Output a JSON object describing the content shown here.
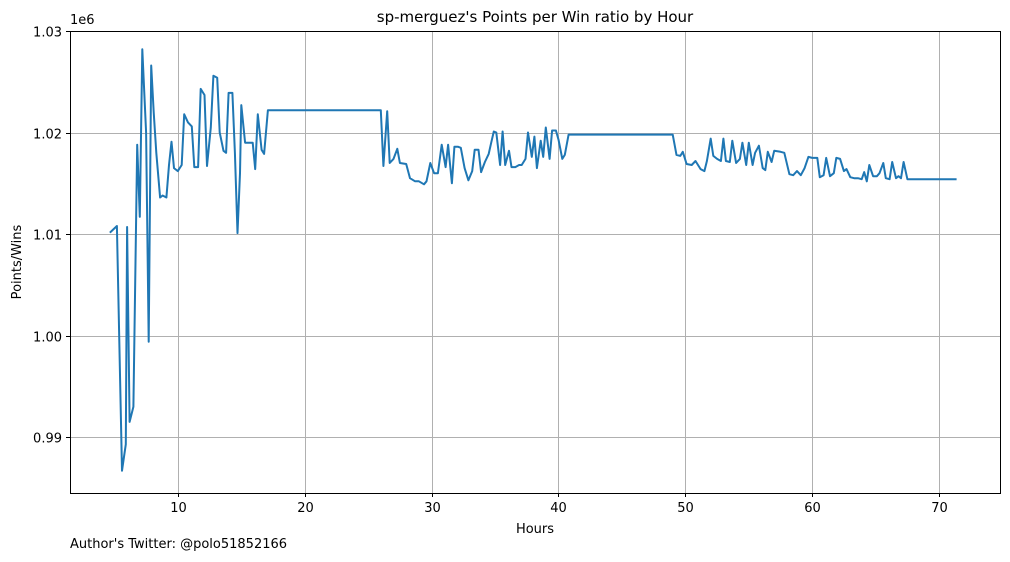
{
  "chart_data": {
    "type": "line",
    "title": "sp-merguez's Points per Win ratio by Hour",
    "xlabel": "Hours",
    "ylabel": "Points/Wins",
    "y_offset_label": "1e6",
    "xlim": [
      1.5,
      74.8
    ],
    "ylim": [
      0.9845,
      1.03
    ],
    "xticks": [
      10,
      20,
      30,
      40,
      50,
      60,
      70
    ],
    "yticks": [
      0.99,
      1.0,
      1.01,
      1.02,
      1.03
    ],
    "ytick_labels": [
      "0.99",
      "1.00",
      "1.01",
      "1.02",
      "1.03"
    ],
    "grid": true,
    "series": [
      {
        "color": "#1f77b4",
        "points": [
          [
            4.7,
            1.0102
          ],
          [
            5.2,
            1.0108
          ],
          [
            5.6,
            0.9867
          ],
          [
            5.9,
            0.9893
          ],
          [
            6.0,
            1.0107
          ],
          [
            6.2,
            0.9915
          ],
          [
            6.5,
            0.993
          ],
          [
            6.8,
            1.0188
          ],
          [
            7.0,
            1.0117
          ],
          [
            7.2,
            1.0282
          ],
          [
            7.5,
            1.02
          ],
          [
            7.7,
            0.9994
          ],
          [
            7.9,
            1.0266
          ],
          [
            8.1,
            1.022
          ],
          [
            8.3,
            1.018
          ],
          [
            8.6,
            1.0136
          ],
          [
            8.8,
            1.0138
          ],
          [
            9.1,
            1.0136
          ],
          [
            9.3,
            1.0168
          ],
          [
            9.5,
            1.0191
          ],
          [
            9.7,
            1.0165
          ],
          [
            10.0,
            1.0162
          ],
          [
            10.3,
            1.0168
          ],
          [
            10.5,
            1.0218
          ],
          [
            10.8,
            1.021
          ],
          [
            11.1,
            1.0206
          ],
          [
            11.3,
            1.0166
          ],
          [
            11.6,
            1.0166
          ],
          [
            11.8,
            1.0243
          ],
          [
            12.1,
            1.0237
          ],
          [
            12.3,
            1.0167
          ],
          [
            12.6,
            1.0205
          ],
          [
            12.8,
            1.0256
          ],
          [
            13.1,
            1.0254
          ],
          [
            13.3,
            1.02
          ],
          [
            13.6,
            1.0182
          ],
          [
            13.8,
            1.018
          ],
          [
            14.0,
            1.0239
          ],
          [
            14.3,
            1.0239
          ],
          [
            14.5,
            1.018
          ],
          [
            14.7,
            1.0101
          ],
          [
            14.9,
            1.016
          ],
          [
            15.0,
            1.0227
          ],
          [
            15.3,
            1.019
          ],
          [
            15.6,
            1.019
          ],
          [
            15.9,
            1.019
          ],
          [
            16.1,
            1.0164
          ],
          [
            16.3,
            1.0218
          ],
          [
            16.6,
            1.0183
          ],
          [
            16.8,
            1.0179
          ],
          [
            17.1,
            1.0222
          ],
          [
            18.0,
            1.0222
          ],
          [
            20.0,
            1.0222
          ],
          [
            22.0,
            1.0222
          ],
          [
            24.0,
            1.0222
          ],
          [
            26.0,
            1.0222
          ],
          [
            26.2,
            1.0167
          ],
          [
            26.5,
            1.0221
          ],
          [
            26.7,
            1.017
          ],
          [
            27.0,
            1.0174
          ],
          [
            27.3,
            1.0184
          ],
          [
            27.5,
            1.017
          ],
          [
            28.0,
            1.0169
          ],
          [
            28.3,
            1.0155
          ],
          [
            28.7,
            1.0152
          ],
          [
            29.0,
            1.0152
          ],
          [
            29.4,
            1.0149
          ],
          [
            29.6,
            1.0152
          ],
          [
            29.9,
            1.017
          ],
          [
            30.2,
            1.016
          ],
          [
            30.5,
            1.016
          ],
          [
            30.8,
            1.0188
          ],
          [
            31.1,
            1.0166
          ],
          [
            31.3,
            1.0188
          ],
          [
            31.6,
            1.015
          ],
          [
            31.8,
            1.0186
          ],
          [
            32.1,
            1.0186
          ],
          [
            32.3,
            1.0185
          ],
          [
            32.6,
            1.0165
          ],
          [
            32.9,
            1.0153
          ],
          [
            33.2,
            1.0162
          ],
          [
            33.4,
            1.0183
          ],
          [
            33.7,
            1.0183
          ],
          [
            33.9,
            1.0161
          ],
          [
            34.2,
            1.0171
          ],
          [
            34.5,
            1.0179
          ],
          [
            34.7,
            1.019
          ],
          [
            34.9,
            1.0201
          ],
          [
            35.1,
            1.02
          ],
          [
            35.4,
            1.0168
          ],
          [
            35.6,
            1.0201
          ],
          [
            35.8,
            1.0168
          ],
          [
            36.1,
            1.0182
          ],
          [
            36.3,
            1.0166
          ],
          [
            36.6,
            1.0166
          ],
          [
            36.9,
            1.0168
          ],
          [
            37.1,
            1.0168
          ],
          [
            37.4,
            1.0174
          ],
          [
            37.6,
            1.02
          ],
          [
            37.9,
            1.0176
          ],
          [
            38.1,
            1.0196
          ],
          [
            38.3,
            1.0165
          ],
          [
            38.6,
            1.0192
          ],
          [
            38.8,
            1.0176
          ],
          [
            39.0,
            1.0205
          ],
          [
            39.3,
            1.0174
          ],
          [
            39.5,
            1.0202
          ],
          [
            39.8,
            1.0202
          ],
          [
            40.0,
            1.0193
          ],
          [
            40.3,
            1.0174
          ],
          [
            40.5,
            1.0178
          ],
          [
            40.8,
            1.0198
          ],
          [
            45.0,
            1.0198
          ],
          [
            49.0,
            1.0198
          ],
          [
            49.3,
            1.0178
          ],
          [
            49.6,
            1.0177
          ],
          [
            49.8,
            1.0181
          ],
          [
            50.1,
            1.0169
          ],
          [
            50.5,
            1.0168
          ],
          [
            50.8,
            1.0172
          ],
          [
            51.2,
            1.0164
          ],
          [
            51.5,
            1.0162
          ],
          [
            51.7,
            1.0172
          ],
          [
            52.0,
            1.0194
          ],
          [
            52.2,
            1.0177
          ],
          [
            52.5,
            1.0174
          ],
          [
            52.8,
            1.0172
          ],
          [
            53.0,
            1.0194
          ],
          [
            53.2,
            1.0172
          ],
          [
            53.5,
            1.0171
          ],
          [
            53.7,
            1.0192
          ],
          [
            54.0,
            1.017
          ],
          [
            54.3,
            1.0174
          ],
          [
            54.5,
            1.019
          ],
          [
            54.8,
            1.0168
          ],
          [
            55.0,
            1.019
          ],
          [
            55.3,
            1.0168
          ],
          [
            55.5,
            1.018
          ],
          [
            55.8,
            1.0187
          ],
          [
            56.1,
            1.0165
          ],
          [
            56.3,
            1.0163
          ],
          [
            56.5,
            1.0181
          ],
          [
            56.8,
            1.0171
          ],
          [
            57.0,
            1.0182
          ],
          [
            57.5,
            1.0181
          ],
          [
            57.8,
            1.018
          ],
          [
            58.2,
            1.0159
          ],
          [
            58.5,
            1.0158
          ],
          [
            58.8,
            1.0162
          ],
          [
            59.1,
            1.0158
          ],
          [
            59.4,
            1.0165
          ],
          [
            59.7,
            1.0176
          ],
          [
            60.0,
            1.0175
          ],
          [
            60.4,
            1.0175
          ],
          [
            60.6,
            1.0156
          ],
          [
            60.9,
            1.0158
          ],
          [
            61.1,
            1.0175
          ],
          [
            61.4,
            1.0157
          ],
          [
            61.7,
            1.016
          ],
          [
            61.9,
            1.0175
          ],
          [
            62.2,
            1.0174
          ],
          [
            62.5,
            1.0162
          ],
          [
            62.7,
            1.0164
          ],
          [
            63.0,
            1.0156
          ],
          [
            63.3,
            1.0155
          ],
          [
            63.6,
            1.0155
          ],
          [
            63.9,
            1.0154
          ],
          [
            64.1,
            1.0161
          ],
          [
            64.3,
            1.0152
          ],
          [
            64.5,
            1.0168
          ],
          [
            64.8,
            1.0157
          ],
          [
            65.1,
            1.0157
          ],
          [
            65.3,
            1.016
          ],
          [
            65.6,
            1.017
          ],
          [
            65.8,
            1.0155
          ],
          [
            66.1,
            1.0154
          ],
          [
            66.3,
            1.0171
          ],
          [
            66.6,
            1.0155
          ],
          [
            66.8,
            1.0157
          ],
          [
            67.0,
            1.0155
          ],
          [
            67.2,
            1.0171
          ],
          [
            67.5,
            1.0154
          ],
          [
            68.0,
            1.0154
          ],
          [
            70.0,
            1.0154
          ],
          [
            71.3,
            1.0154
          ]
        ]
      }
    ]
  },
  "footer": {
    "note": "Author's Twitter: @polo51852166"
  }
}
